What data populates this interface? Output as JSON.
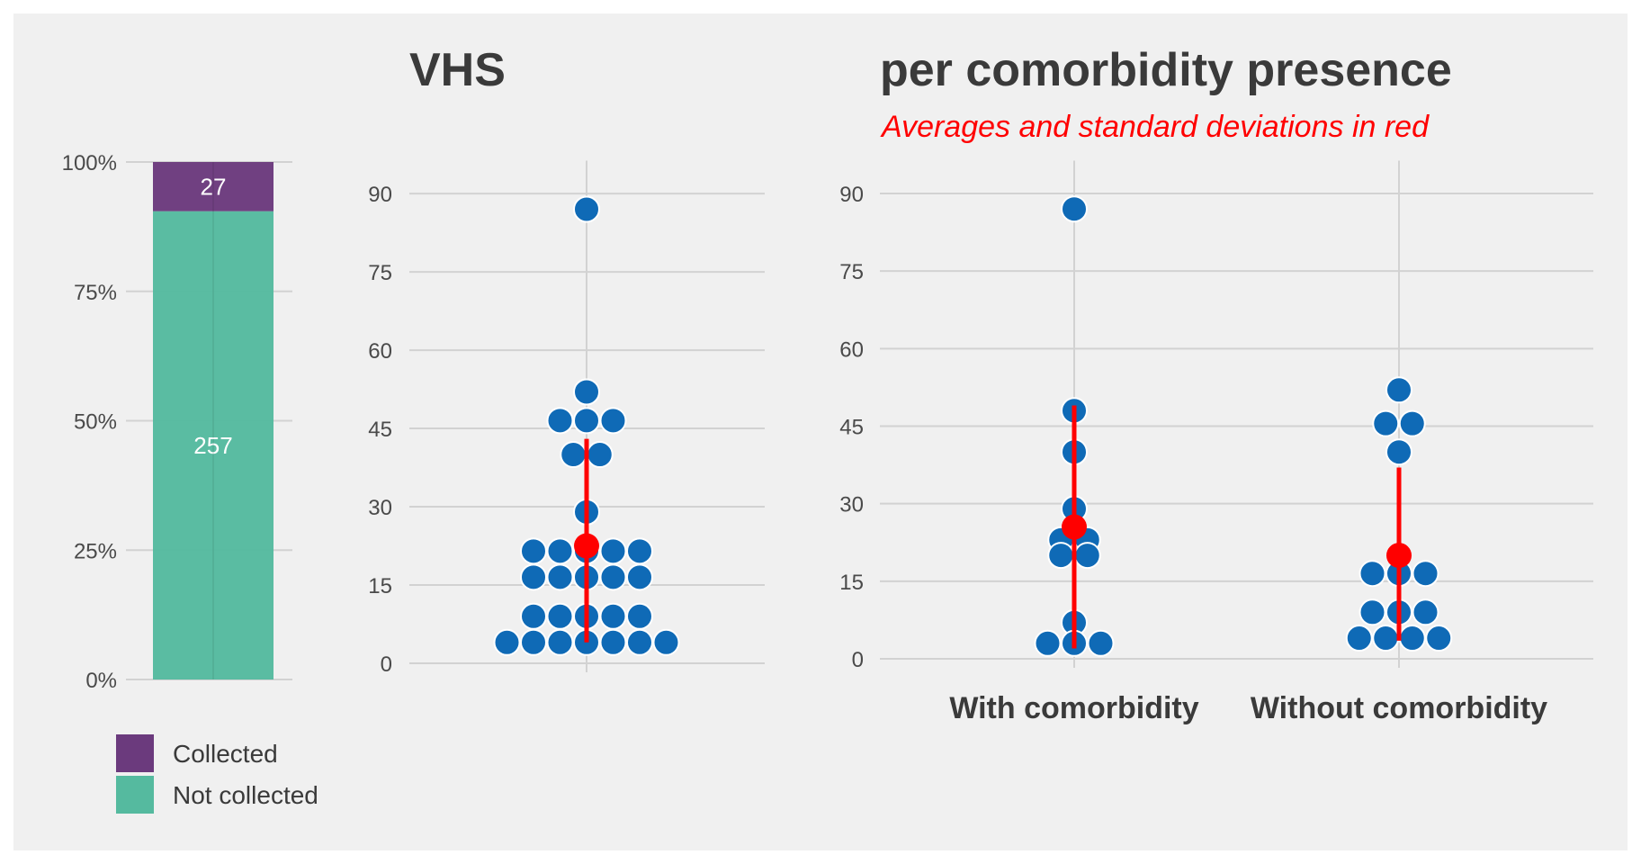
{
  "chart_data": [
    {
      "type": "bar",
      "stacked": true,
      "percent_axis": true,
      "y_ticks": [
        "0%",
        "25%",
        "50%",
        "75%",
        "100%"
      ],
      "segments": [
        {
          "name": "Not collected",
          "value": 257,
          "color": "#55BA9F"
        },
        {
          "name": "Collected",
          "value": 27,
          "color": "#6B3A7D"
        }
      ],
      "legend": [
        {
          "label": "Collected",
          "color": "#6B3A7D"
        },
        {
          "label": "Not collected",
          "color": "#55BA9F"
        }
      ],
      "legend_position": "bottom"
    },
    {
      "type": "scatter",
      "style": "dotplot",
      "title": "VHS",
      "ylim": [
        0,
        92
      ],
      "y_ticks": [
        0,
        15,
        30,
        45,
        60,
        75,
        90
      ],
      "point_color": "#0F6AB6",
      "points": [
        {
          "y": 87,
          "n": 1
        },
        {
          "y": 52,
          "n": 1
        },
        {
          "y": 46.5,
          "n": 3
        },
        {
          "y": 40,
          "n": 2
        },
        {
          "y": 29,
          "n": 1
        },
        {
          "y": 21.5,
          "n": 5
        },
        {
          "y": 16.5,
          "n": 5
        },
        {
          "y": 9,
          "n": 5
        },
        {
          "y": 4,
          "n": 7
        }
      ],
      "summary": {
        "mean": 22.5,
        "sd_low": 4,
        "sd_high": 43,
        "color": "#ff0000"
      }
    },
    {
      "type": "scatter",
      "style": "dotplot",
      "title": "per comorbidity presence",
      "subtitle": "Averages and standard deviations in red",
      "ylim": [
        0,
        92
      ],
      "y_ticks": [
        0,
        15,
        30,
        45,
        60,
        75,
        90
      ],
      "categories": [
        "With comorbidity",
        "Without comorbidity"
      ],
      "point_color": "#0F6AB6",
      "groups": [
        {
          "category": "With comorbidity",
          "points": [
            {
              "y": 87,
              "n": 1
            },
            {
              "y": 48,
              "n": 1
            },
            {
              "y": 40,
              "n": 1
            },
            {
              "y": 29,
              "n": 1
            },
            {
              "y": 23,
              "n": 2
            },
            {
              "y": 20,
              "n": 2
            },
            {
              "y": 7,
              "n": 1
            },
            {
              "y": 3,
              "n": 3
            }
          ],
          "summary": {
            "mean": 25.5,
            "sd_low": 2,
            "sd_high": 49
          }
        },
        {
          "category": "Without comorbidity",
          "points": [
            {
              "y": 52,
              "n": 1
            },
            {
              "y": 45.5,
              "n": 2
            },
            {
              "y": 40,
              "n": 1
            },
            {
              "y": 16.5,
              "n": 3
            },
            {
              "y": 9,
              "n": 3
            },
            {
              "y": 4,
              "n": 4
            }
          ],
          "summary": {
            "mean": 20,
            "sd_low": 3.5,
            "sd_high": 37
          }
        }
      ]
    }
  ]
}
